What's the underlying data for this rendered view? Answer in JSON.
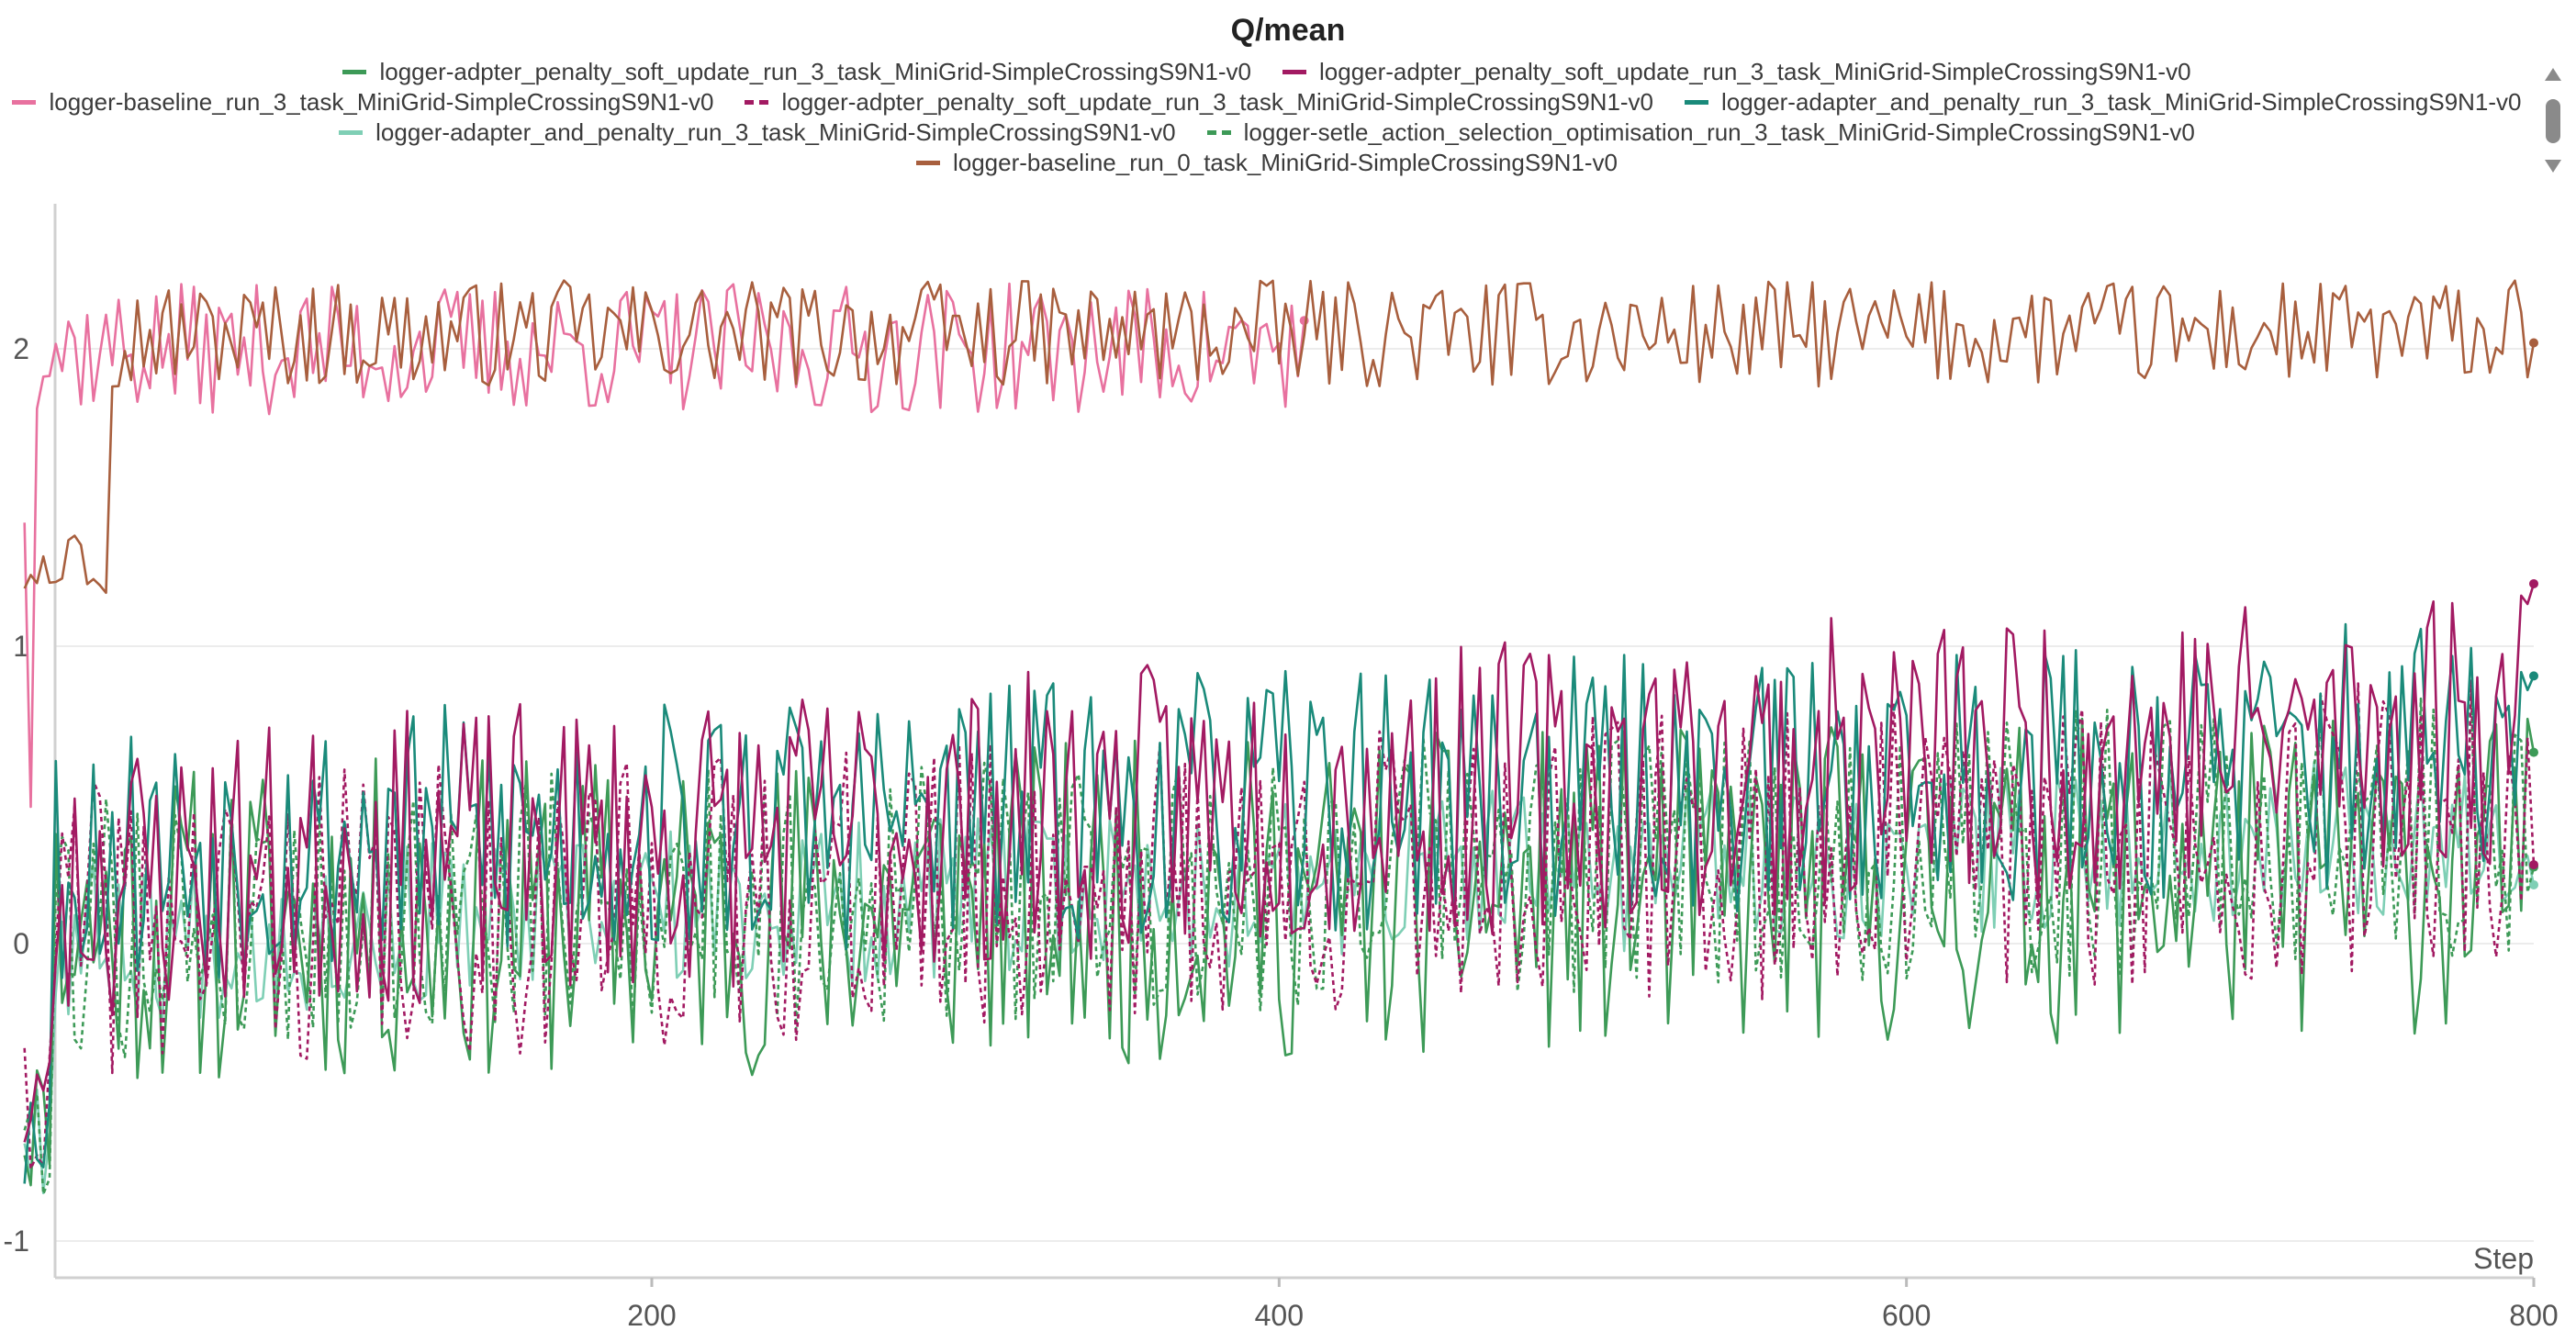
{
  "chart_data": {
    "type": "line",
    "title": "Q/mean",
    "xlabel": "Step",
    "ylabel": "",
    "xlim": [
      0,
      800
    ],
    "ylim": [
      -1.1,
      2.5
    ],
    "x_ticks": [
      200,
      400,
      600,
      800
    ],
    "y_ticks": [
      -1,
      0,
      1,
      2
    ],
    "grid": true,
    "legend_position": "top-center",
    "series": [
      {
        "name": "logger-adpter_penalty_soft_update_run_3_task_MiniGrid-SimpleCrossingS9N1-v0",
        "color": "#3d9a57",
        "dash": "solid",
        "start": 0,
        "end": 800,
        "base": 0.05,
        "trend": 0.2,
        "amp": 0.55,
        "seed": 11
      },
      {
        "name": "logger-adpter_penalty_soft_update_run_3_task_MiniGrid-SimpleCrossingS9N1-v0",
        "color": "#a21a62",
        "dash": "solid",
        "start": 0,
        "end": 800,
        "base": 0.2,
        "trend": 0.55,
        "amp": 0.5,
        "last": 1.21,
        "seed": 23
      },
      {
        "name": "logger-baseline_run_3_task_MiniGrid-SimpleCrossingS9N1-v0",
        "color": "#e8719f",
        "dash": "solid",
        "start": 0,
        "end": 409,
        "base": 2.0,
        "trend": 0.0,
        "amp": 0.22,
        "last": 1.97,
        "seed": 37
      },
      {
        "name": "logger-adpter_penalty_soft_update_run_3_task_MiniGrid-SimpleCrossingS9N1-v0",
        "color": "#a21a62",
        "dash": "dashed",
        "start": 0,
        "end": 800,
        "base": 0.05,
        "trend": 0.35,
        "amp": 0.5,
        "seed": 41
      },
      {
        "name": "logger-adapter_and_penalty_run_3_task_MiniGrid-SimpleCrossingS9N1-v0",
        "color": "#1a8a7a",
        "dash": "solid",
        "start": 0,
        "end": 800,
        "base": 0.3,
        "trend": 0.35,
        "amp": 0.45,
        "last": 0.9,
        "seed": 53
      },
      {
        "name": "logger-adapter_and_penalty_run_3_task_MiniGrid-SimpleCrossingS9N1-v0",
        "color": "#7fcfb5",
        "dash": "solid",
        "start": 0,
        "end": 800,
        "base": 0.0,
        "trend": 0.4,
        "amp": 0.28,
        "seed": 67
      },
      {
        "name": "logger-setle_action_selection_optimisation_run_3_task_MiniGrid-SimpleCrossingS9N1-v0",
        "color": "#3d9a57",
        "dash": "dashed",
        "start": 0,
        "end": 800,
        "base": 0.05,
        "trend": 0.35,
        "amp": 0.45,
        "seed": 79
      },
      {
        "name": "logger-baseline_run_0_task_MiniGrid-SimpleCrossingS9N1-v0",
        "color": "#a85f3e",
        "dash": "solid",
        "start": 0,
        "end": 800,
        "base": 2.05,
        "trend": 0.0,
        "amp": 0.18,
        "last": 2.02,
        "seed": 97
      }
    ]
  }
}
